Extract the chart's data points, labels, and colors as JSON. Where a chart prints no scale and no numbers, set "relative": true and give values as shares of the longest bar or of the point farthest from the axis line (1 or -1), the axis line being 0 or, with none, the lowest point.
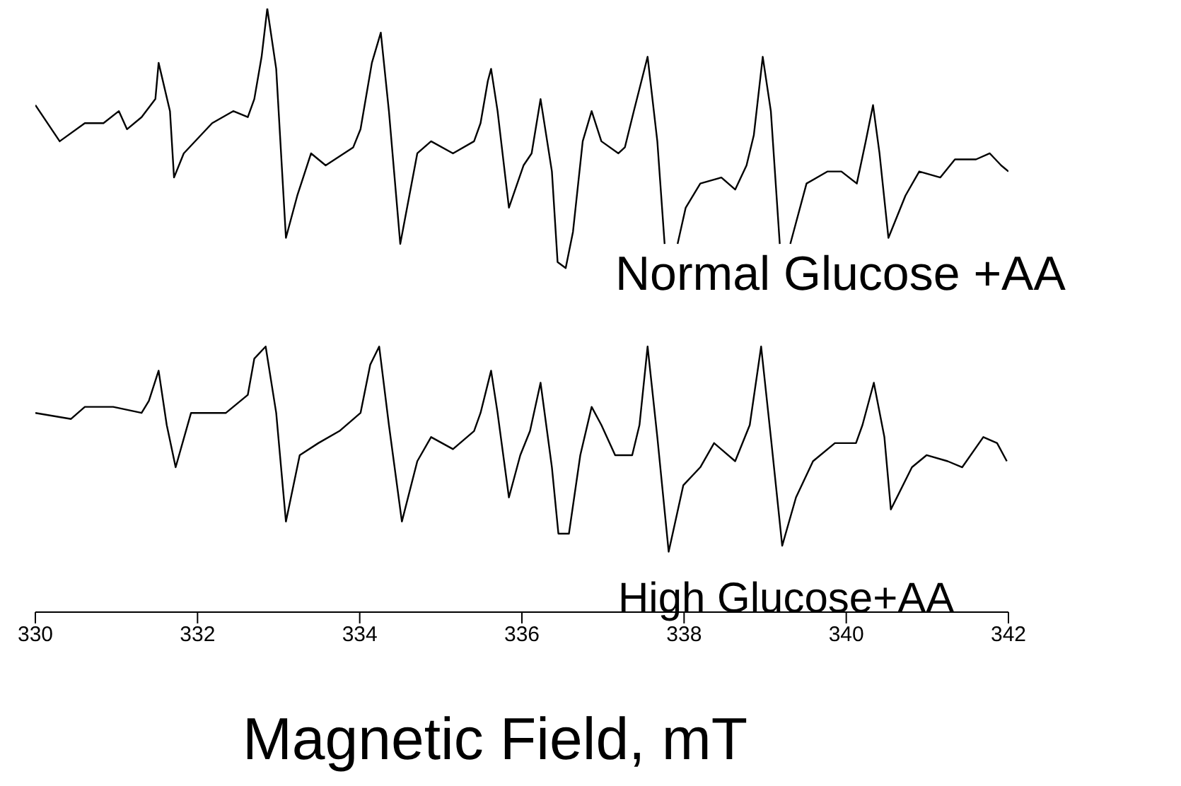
{
  "chart_data": {
    "type": "line",
    "relative": true,
    "xlabel": "Magnetic Field, mT",
    "xlim": [
      330,
      342
    ],
    "xticks": [
      330,
      332,
      334,
      336,
      338,
      340,
      342
    ],
    "marker": "none",
    "line_style": "solid",
    "series": [
      {
        "name": "Normal Glucose +AA",
        "color": "#000000",
        "x": [
          330.0,
          330.3,
          330.61,
          330.84,
          331.03,
          331.13,
          331.31,
          331.48,
          331.52,
          331.66,
          331.71,
          331.83,
          332.18,
          332.44,
          332.62,
          332.7,
          332.79,
          332.86,
          332.97,
          333.09,
          333.23,
          333.4,
          333.58,
          333.92,
          334.01,
          334.15,
          334.26,
          334.36,
          334.5,
          334.71,
          334.88,
          335.15,
          335.41,
          335.49,
          335.58,
          335.62,
          335.7,
          335.84,
          336.02,
          336.12,
          336.23,
          336.37,
          336.44,
          336.54,
          336.63,
          336.75,
          336.86,
          336.98,
          337.19,
          337.27,
          337.38,
          337.55,
          337.67,
          337.76,
          337.84,
          337.92,
          338.02,
          338.2,
          338.46,
          338.63,
          338.77,
          338.86,
          338.97,
          339.07,
          339.18,
          339.25,
          339.31,
          339.51,
          339.77,
          339.94,
          340.13,
          340.24,
          340.33,
          340.41,
          340.52,
          340.73,
          340.9,
          341.16,
          341.34,
          341.6,
          341.77,
          341.91,
          342.0
        ],
        "values": [
          0.84,
          0.78,
          0.81,
          0.81,
          0.83,
          0.8,
          0.82,
          0.85,
          0.91,
          0.83,
          0.72,
          0.76,
          0.81,
          0.83,
          0.82,
          0.85,
          0.92,
          1.0,
          0.9,
          0.62,
          0.69,
          0.76,
          0.74,
          0.77,
          0.8,
          0.91,
          0.96,
          0.83,
          0.61,
          0.76,
          0.78,
          0.76,
          0.78,
          0.81,
          0.88,
          0.9,
          0.83,
          0.67,
          0.74,
          0.76,
          0.85,
          0.73,
          0.58,
          0.57,
          0.63,
          0.78,
          0.83,
          0.78,
          0.76,
          0.77,
          0.83,
          0.92,
          0.78,
          0.61,
          null,
          0.61,
          0.67,
          0.71,
          0.72,
          0.7,
          0.74,
          0.79,
          0.92,
          0.83,
          0.61,
          null,
          0.61,
          0.71,
          0.73,
          0.73,
          0.71,
          0.78,
          0.84,
          0.76,
          0.62,
          0.69,
          0.73,
          0.72,
          0.75,
          0.75,
          0.76,
          0.74,
          0.73
        ]
      },
      {
        "name": "High Glucose+AA",
        "color": "#000000",
        "x": [
          330.0,
          330.44,
          330.61,
          330.96,
          331.31,
          331.4,
          331.52,
          331.62,
          331.73,
          331.92,
          332.35,
          332.62,
          332.7,
          332.84,
          332.97,
          333.09,
          333.26,
          333.49,
          333.75,
          334.01,
          334.13,
          334.24,
          334.36,
          334.52,
          334.71,
          334.88,
          335.15,
          335.41,
          335.49,
          335.62,
          335.7,
          335.84,
          335.98,
          336.1,
          336.23,
          336.37,
          336.45,
          336.58,
          336.72,
          336.86,
          336.98,
          337.15,
          337.36,
          337.45,
          337.55,
          337.67,
          337.81,
          337.99,
          338.2,
          338.37,
          338.63,
          338.81,
          338.95,
          339.07,
          339.21,
          339.38,
          339.59,
          339.86,
          340.12,
          340.2,
          340.34,
          340.47,
          340.55,
          340.81,
          340.99,
          341.25,
          341.43,
          341.69,
          341.86,
          341.98
        ],
        "values": [
          0.33,
          0.32,
          0.34,
          0.34,
          0.33,
          0.35,
          0.4,
          0.31,
          0.24,
          0.33,
          0.33,
          0.36,
          0.42,
          0.44,
          0.33,
          0.15,
          0.26,
          0.28,
          0.3,
          0.33,
          0.41,
          0.44,
          0.31,
          0.15,
          0.25,
          0.29,
          0.27,
          0.3,
          0.33,
          0.4,
          0.33,
          0.19,
          0.26,
          0.3,
          0.38,
          0.24,
          0.13,
          0.13,
          0.26,
          0.34,
          0.31,
          0.26,
          0.26,
          0.31,
          0.44,
          0.29,
          0.1,
          0.21,
          0.24,
          0.28,
          0.25,
          0.31,
          0.44,
          0.29,
          0.11,
          0.19,
          0.25,
          0.28,
          0.28,
          0.31,
          0.38,
          0.29,
          0.17,
          0.24,
          0.26,
          0.25,
          0.24,
          0.29,
          0.28,
          0.25
        ]
      }
    ]
  }
}
